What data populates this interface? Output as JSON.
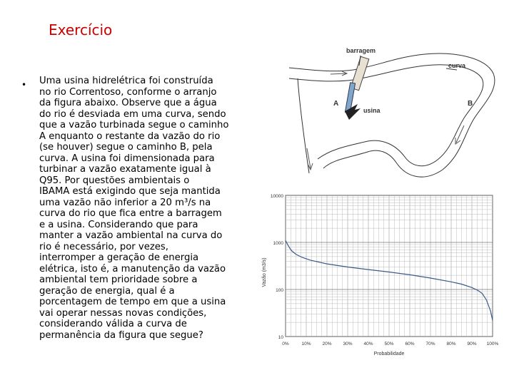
{
  "slide": {
    "title": "Exercício",
    "bullet": "•",
    "body_lines": [
      "Uma usina hidrelétrica foi construída",
      "no rio Correntoso, conforme o arranjo",
      "da figura abaixo. Observe que a água",
      "do rio é desviada em uma curva, sendo",
      "que a vazão turbinada segue o caminho",
      "A enquanto o restante da vazão do rio",
      "(se houver) segue o caminho B, pela",
      "curva. A usina foi dimensionada para",
      "turbinar a vazão exatamente igual à",
      "Q95. Por questões ambientais o",
      "IBAMA está exigindo que seja mantida",
      "uma vazão não inferior a 20 m³/s na",
      "curva do rio que fica entre a barragem",
      "e a usina. Considerando que para",
      "manter a vazão ambiental na curva do",
      "rio é necessário, por vezes,",
      "interromper a geração de energia",
      "elétrica, isto é, a manutenção da vazão",
      "ambiental tem prioridade sobre a",
      "geração de energia, qual é a",
      "porcentagem de tempo em que a usina",
      "vai operar nessas novas condições,",
      "considerando válida a curva de",
      "permanência da figura que segue?"
    ]
  },
  "diagram": {
    "labels": {
      "barragem": "barragem",
      "curva": "curva",
      "a": "A",
      "b": "B",
      "usina": "usina"
    }
  },
  "chart_data": {
    "type": "line",
    "xlabel": "Probabilidade",
    "ylabel": "Vazão (m3/s)",
    "x_ticks": [
      "0%",
      "10%",
      "20%",
      "30%",
      "40%",
      "50%",
      "60%",
      "70%",
      "80%",
      "90%",
      "100%"
    ],
    "y_ticks": [
      "10",
      "100",
      "1000",
      "10000"
    ],
    "ylim": [
      10,
      10000
    ],
    "y_scale": "log",
    "grid": true,
    "series": [
      {
        "x": [
          0,
          1,
          2,
          3,
          5,
          8,
          12,
          20,
          30,
          40,
          50,
          60,
          70,
          80,
          85,
          90,
          93,
          95,
          97,
          99,
          100
        ],
        "y": [
          1100,
          900,
          760,
          660,
          560,
          480,
          420,
          350,
          300,
          265,
          235,
          205,
          175,
          145,
          130,
          110,
          95,
          82,
          60,
          35,
          22
        ]
      }
    ]
  }
}
